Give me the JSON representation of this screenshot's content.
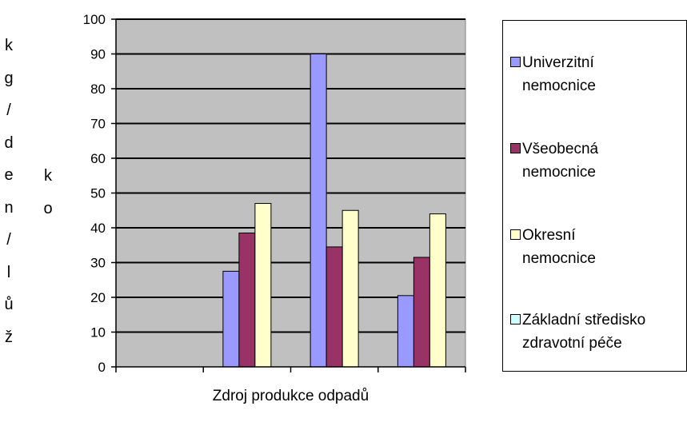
{
  "chart_data": {
    "type": "bar",
    "title": "",
    "xlabel": "Zdroj produkce odpadů",
    "ylabel_col1": [
      "k",
      "g",
      "/",
      "d",
      "e",
      "n",
      "/",
      "l",
      "ů",
      "ž"
    ],
    "ylabel_col2": [
      "k",
      "o"
    ],
    "ylim": [
      0,
      100
    ],
    "yticks": [
      0,
      10,
      20,
      30,
      40,
      50,
      60,
      70,
      80,
      90,
      100
    ],
    "categories": [
      "",
      "",
      "",
      ""
    ],
    "grid": true,
    "legend_position": "right",
    "series": [
      {
        "name": "Univerzitní nemocnice",
        "values": [
          null,
          27.5,
          90,
          20.5
        ],
        "color": "#9999FF"
      },
      {
        "name": "Všeobecná nemocnice",
        "values": [
          null,
          38.5,
          34.5,
          31.5
        ],
        "color": "#993366"
      },
      {
        "name": "Okresní nemocnice",
        "values": [
          null,
          47,
          45,
          44
        ],
        "color": "#FFFFCC"
      },
      {
        "name": "Základní středisko zdravotní péče",
        "values": [
          null,
          null,
          null,
          null
        ],
        "color": "#CCFFFF"
      }
    ],
    "legend": [
      {
        "line1": "Univerzitní",
        "line2": "nemocnice"
      },
      {
        "line1": "Všeobecná",
        "line2": "nemocnice"
      },
      {
        "line1": "Okresní",
        "line2": "nemocnice"
      },
      {
        "line1": "Základní středisko",
        "line2": "zdravotní péče"
      }
    ],
    "plot_background": "#C0C0C0"
  }
}
